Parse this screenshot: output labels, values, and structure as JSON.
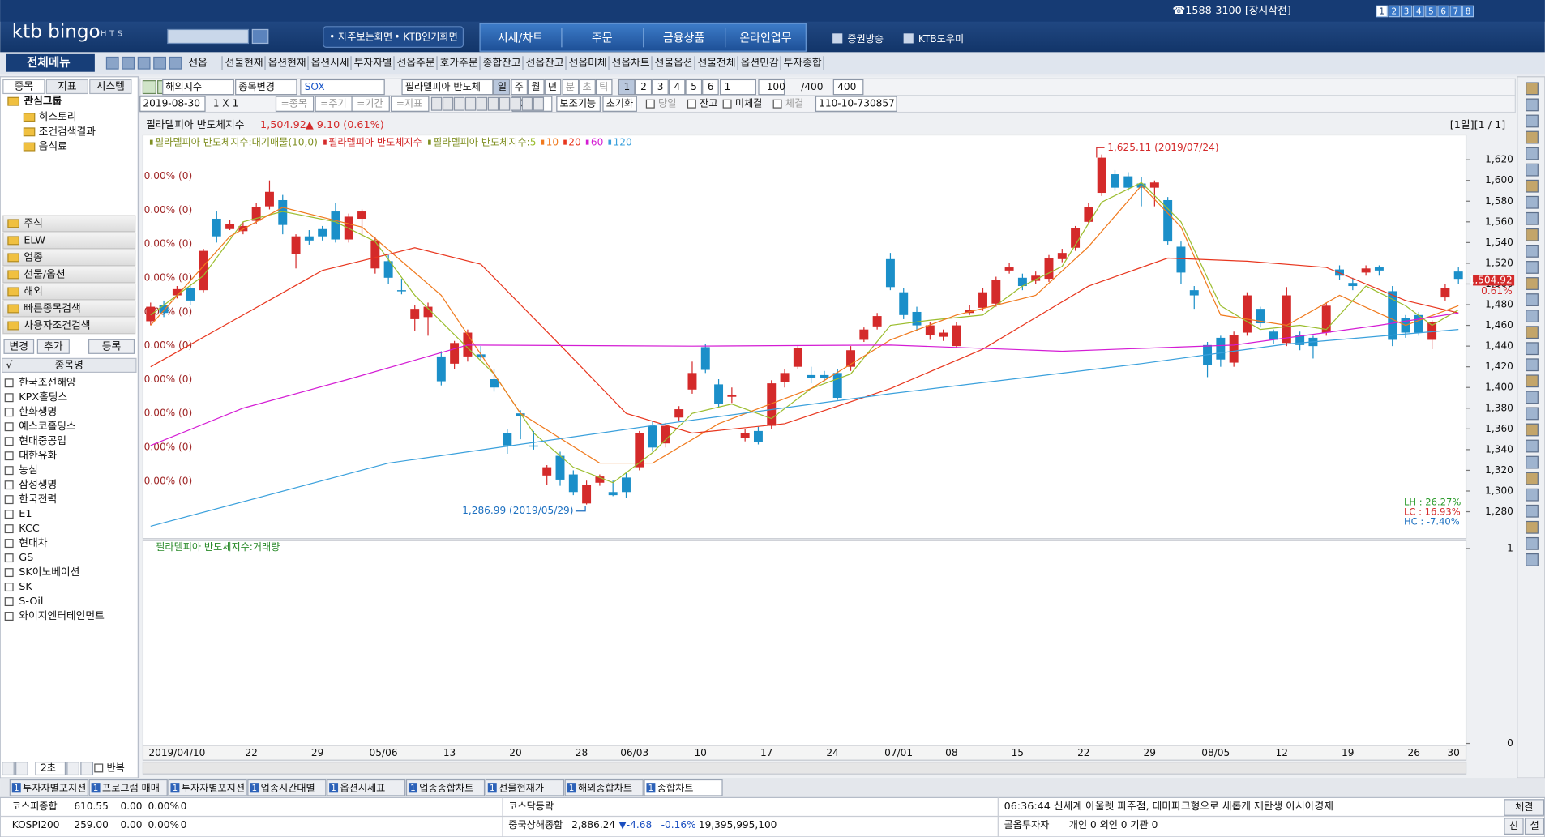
{
  "ui": {
    "phone": "☎1588-3100 [장시작전]",
    "pages": [
      "1",
      "2",
      "3",
      "4",
      "5",
      "6",
      "7",
      "8"
    ],
    "logo": "ktb bingo",
    "logo_sub": "HTS",
    "quick": [
      "• 자주보는화면",
      "• KTB인기화면"
    ],
    "tabs": [
      "시세/차트",
      "주문",
      "금융상품",
      "온라인업무"
    ],
    "links": [
      "증권방송",
      "KTB도우미"
    ],
    "menu_button": "전체메뉴",
    "menu": [
      "선옵",
      "선물현재",
      "옵션현재",
      "옵션시세",
      "투자자별",
      "선옵주문",
      "호가주문",
      "종합잔고",
      "선옵잔고",
      "선옵미체",
      "선옵차트",
      "선물옵션",
      "선물전체",
      "옵션민감",
      "투자종합"
    ],
    "left_tabs": [
      "종목",
      "지표",
      "시스템"
    ],
    "tree_root": "관심그룹",
    "tree_items": [
      "히스토리",
      "조건검색결과",
      "음식료"
    ],
    "groups": [
      "주식",
      "ELW",
      "업종",
      "선물/옵션",
      "해외",
      "빠른종목검색",
      "사용자조건검색"
    ],
    "list_buttons": [
      "변경",
      "추가",
      "등록"
    ],
    "list_header": [
      "√",
      "종목명"
    ],
    "stocks": [
      "한국조선해양",
      "KPX홀딩스",
      "한화생명",
      "예스코홀딩스",
      "현대중공업",
      "대한유화",
      "농심",
      "삼성생명",
      "한국전력",
      "E1",
      "KCC",
      "현대차",
      "GS",
      "SK이노베이션",
      "SK",
      "S-Oil",
      "와이지엔터테인먼트"
    ],
    "left_bottom": [
      "2초",
      "반복"
    ],
    "toolbar1": [
      "해외지수",
      "종목변경",
      "SOX",
      "필라델피아 반도체",
      "일",
      "주",
      "월",
      "년",
      "분",
      "초",
      "틱",
      "1",
      "2",
      "3",
      "4",
      "5",
      "6",
      "1",
      "100",
      "/400",
      "400"
    ],
    "toolbar2": [
      "2019-08-30",
      "1 X 1",
      "=종목",
      "=주기",
      "=기간",
      "=지표",
      "X 1",
      "보조기능",
      "초기화",
      "당일",
      "잔고",
      "미체결",
      "체결",
      "110-10-730857"
    ],
    "tab_index": "1",
    "bottom_tabs": [
      "투자자별포지션",
      "프로그램 매매",
      "투자자별포지션",
      "업종시간대별",
      "옵션시세표",
      "업종종합차트",
      "선물현재가",
      "해외종합차트",
      "종합차트"
    ],
    "status1": [
      "코스피종합",
      "610.55",
      "0.00",
      "0.00%",
      "0"
    ],
    "status2": [
      "KOSPI200",
      "259.00",
      "0.00",
      "0.00%",
      "0"
    ],
    "status3": [
      "코스닥등락"
    ],
    "status4": [
      "중국상해종합",
      "2,886.24",
      "▼-4.68",
      "-0.16%",
      "19,395,995,100"
    ],
    "news": "06:36:44  신세계 아울렛 파주점, 테마파크형으로 새롭게 재탄생  아시아경제",
    "investor": [
      "콜옵투자자",
      "개인 0  외인 0  기관 0"
    ],
    "side_buttons": [
      "체결",
      "신",
      "설"
    ]
  },
  "chart_data": {
    "type": "candlestick",
    "title": "필라델피아 반도체지수",
    "last": "1,504.92",
    "change": "▲ 9.10 (0.61%)",
    "period": "[1일][1 / 1]",
    "legend_texts": [
      {
        "text": "필라델피아 반도체지수:대기매물(10,0)",
        "color": "#7f8f22"
      },
      {
        "text": "필라델피아 반도체지수",
        "color": "#d42a2a"
      },
      {
        "text": "필라델피아 반도체지수:",
        "color": "#7f8f22"
      }
    ],
    "up_color": "#d42a2a",
    "down_color": "#1b8fc9",
    "categories": [
      null,
      null,
      "2019/04/10",
      null,
      null,
      null,
      null,
      null,
      "22",
      null,
      null,
      null,
      null,
      "29",
      null,
      null,
      null,
      null,
      "05/06",
      null,
      null,
      null,
      null,
      "13",
      null,
      null,
      null,
      null,
      "20",
      null,
      null,
      null,
      null,
      "28",
      null,
      null,
      null,
      "06/03",
      null,
      null,
      null,
      null,
      "10",
      null,
      null,
      null,
      null,
      "17",
      null,
      null,
      null,
      null,
      "24",
      null,
      null,
      null,
      null,
      "07/01",
      null,
      null,
      null,
      "08",
      null,
      null,
      null,
      null,
      "15",
      null,
      null,
      null,
      null,
      "22",
      null,
      null,
      null,
      null,
      "29",
      null,
      null,
      null,
      null,
      "08/05",
      null,
      null,
      null,
      null,
      "12",
      null,
      null,
      null,
      null,
      "19",
      null,
      null,
      null,
      null,
      "26",
      null,
      null,
      "30"
    ],
    "open": [
      1464,
      1480,
      1489,
      1496,
      1494,
      1563,
      1553,
      1551,
      1561,
      1575,
      1581,
      1529,
      1546,
      1553,
      1570,
      1543,
      1563,
      1515,
      1522,
      1494,
      1466,
      1468,
      1430,
      1423,
      1430,
      1432,
      1408,
      1356,
      1375,
      1344,
      1315,
      1334,
      1316,
      1288,
      1308,
      1299,
      1313,
      1323,
      1363,
      1346,
      1371,
      1398,
      1439,
      1403,
      1391,
      1351,
      1358,
      1363,
      1405,
      1420,
      1412,
      1412,
      1414,
      1420,
      1446,
      1459,
      1524,
      1492,
      1473,
      1451,
      1449,
      1440,
      1472,
      1477,
      1481,
      1513,
      1506,
      1503,
      1505,
      1524,
      1535,
      1560,
      1588,
      1606,
      1604,
      1597,
      1593,
      1581,
      1536,
      1494,
      1441,
      1448,
      1424,
      1453,
      1476,
      1454,
      1443,
      1451,
      1448,
      1453,
      1514,
      1501,
      1511,
      1516,
      1493,
      1467,
      1470,
      1446,
      1487,
      1512
    ],
    "high": [
      1482,
      1484,
      1498,
      1500,
      1534,
      1570,
      1562,
      1560,
      1578,
      1600,
      1586,
      1548,
      1552,
      1556,
      1578,
      1568,
      1572,
      1545,
      1528,
      1505,
      1480,
      1482,
      1435,
      1445,
      1456,
      1440,
      1418,
      1360,
      1378,
      1358,
      1325,
      1338,
      1320,
      1310,
      1316,
      1310,
      1318,
      1358,
      1368,
      1366,
      1382,
      1425,
      1442,
      1408,
      1400,
      1360,
      1362,
      1407,
      1418,
      1440,
      1420,
      1416,
      1418,
      1440,
      1458,
      1472,
      1530,
      1496,
      1478,
      1463,
      1456,
      1463,
      1480,
      1496,
      1507,
      1520,
      1510,
      1512,
      1528,
      1534,
      1556,
      1578,
      1625.11,
      1610,
      1608,
      1603,
      1600,
      1584,
      1541,
      1498,
      1444,
      1450,
      1454,
      1492,
      1478,
      1456,
      1497,
      1454,
      1450,
      1482,
      1518,
      1506,
      1518,
      1518,
      1498,
      1470,
      1473,
      1465,
      1500,
      1516
    ],
    "low": [
      1460,
      1468,
      1486,
      1480,
      1492,
      1540,
      1552,
      1548,
      1558,
      1572,
      1548,
      1515,
      1538,
      1542,
      1540,
      1540,
      1546,
      1510,
      1500,
      1490,
      1455,
      1450,
      1402,
      1418,
      1425,
      1426,
      1396,
      1336,
      1350,
      1340,
      1306,
      1305,
      1296,
      1286.99,
      1305,
      1295,
      1293,
      1320,
      1338,
      1342,
      1368,
      1394,
      1414,
      1380,
      1385,
      1348,
      1345,
      1360,
      1400,
      1418,
      1404,
      1406,
      1388,
      1416,
      1444,
      1456,
      1494,
      1466,
      1455,
      1446,
      1445,
      1438,
      1470,
      1474,
      1478,
      1510,
      1494,
      1500,
      1502,
      1521,
      1532,
      1558,
      1585,
      1590,
      1590,
      1575,
      1575,
      1538,
      1500,
      1476,
      1410,
      1420,
      1420,
      1450,
      1458,
      1442,
      1440,
      1436,
      1428,
      1450,
      1504,
      1494,
      1508,
      1508,
      1440,
      1448,
      1450,
      1437,
      1484,
      1500
    ],
    "close": [
      1478,
      1472,
      1495,
      1484,
      1532,
      1546,
      1558,
      1556,
      1574,
      1589,
      1557,
      1546,
      1542,
      1546,
      1543,
      1565,
      1570,
      1542,
      1506,
      1493,
      1476,
      1478,
      1406,
      1443,
      1453,
      1429,
      1400,
      1344,
      1372,
      1343,
      1323,
      1311,
      1299,
      1306,
      1314,
      1296,
      1299,
      1356,
      1342,
      1363,
      1379,
      1414,
      1417,
      1384,
      1393,
      1356,
      1347,
      1404,
      1414,
      1438,
      1409,
      1409,
      1390,
      1436,
      1456,
      1469,
      1497,
      1470,
      1460,
      1460,
      1453,
      1460,
      1475,
      1492,
      1504,
      1516,
      1498,
      1508,
      1525,
      1530,
      1554,
      1574,
      1622,
      1593,
      1593,
      1593,
      1598,
      1541,
      1511,
      1489,
      1422,
      1427,
      1451,
      1489,
      1462,
      1446,
      1489,
      1441,
      1440,
      1479,
      1508,
      1498,
      1515,
      1513,
      1446,
      1453,
      1453,
      1463,
      1496,
      1504.92
    ],
    "ylim": [
      1254,
      1644
    ],
    "yticks": [
      {
        "value": 1280,
        "label": "1,280"
      },
      {
        "value": 1300,
        "label": "1,300"
      },
      {
        "value": 1320,
        "label": "1,320"
      },
      {
        "value": 1340,
        "label": "1,340"
      },
      {
        "value": 1360,
        "label": "1,360"
      },
      {
        "value": 1380,
        "label": "1,380"
      },
      {
        "value": 1400,
        "label": "1,400"
      },
      {
        "value": 1420,
        "label": "1,420"
      },
      {
        "value": 1440,
        "label": "1,440"
      },
      {
        "value": 1460,
        "label": "1,460"
      },
      {
        "value": 1480,
        "label": "1,480"
      },
      {
        "value": 1500,
        "label": "1,500"
      },
      {
        "value": 1520,
        "label": "1,520"
      },
      {
        "value": 1540,
        "label": "1,540"
      },
      {
        "value": 1560,
        "label": "1,560"
      },
      {
        "value": 1580,
        "label": "1,580"
      },
      {
        "value": 1600,
        "label": "1,600"
      },
      {
        "value": 1620,
        "label": "1,620"
      }
    ],
    "grid": false,
    "moving_averages": [
      {
        "name": "5",
        "color": "#9bbd2e",
        "x": [
          0,
          4,
          7,
          10,
          14,
          17,
          20,
          23,
          26,
          29,
          32,
          35,
          38,
          41,
          44,
          47,
          50,
          53,
          56,
          59,
          63,
          66,
          69,
          72,
          75,
          78,
          81,
          84,
          87,
          89,
          92,
          95,
          97,
          99
        ],
        "values": [
          1470,
          1508,
          1560,
          1570,
          1560,
          1541,
          1489,
          1451,
          1413,
          1356,
          1323,
          1308,
          1337,
          1375,
          1384,
          1370,
          1399,
          1413,
          1460,
          1465,
          1470,
          1498,
          1517,
          1579,
          1598,
          1560,
          1479,
          1456,
          1460,
          1456,
          1498,
          1479,
          1460,
          1475
        ]
      },
      {
        "name": "10",
        "color": "#f07a1e",
        "x": [
          0,
          6,
          10,
          16,
          22,
          28,
          34,
          38,
          43,
          50,
          56,
          61,
          67,
          71,
          75,
          78,
          81,
          86,
          90,
          95,
          99
        ],
        "values": [
          1460,
          1546,
          1574,
          1555,
          1489,
          1375,
          1327,
          1327,
          1365,
          1399,
          1446,
          1470,
          1489,
          1536,
          1595,
          1555,
          1470,
          1460,
          1489,
          1460,
          1479
        ]
      },
      {
        "name": "20",
        "color": "#e8361e",
        "x": [
          0,
          7,
          13,
          20,
          25,
          31,
          36,
          41,
          48,
          56,
          63,
          71,
          77,
          83,
          89,
          95,
          99
        ],
        "values": [
          1420,
          1470,
          1513,
          1535,
          1519,
          1441,
          1375,
          1356,
          1365,
          1399,
          1437,
          1498,
          1525,
          1522,
          1516,
          1484,
          1472
        ]
      },
      {
        "name": "60",
        "color": "#d41cd4",
        "x": [
          0,
          7,
          15,
          24,
          41,
          56,
          69,
          82,
          93,
          99
        ],
        "values": [
          1344,
          1380,
          1408,
          1441,
          1440,
          1441,
          1435,
          1441,
          1460,
          1472
        ]
      },
      {
        "name": "120",
        "color": "#3aa0dc",
        "x": [
          0,
          18,
          39,
          56,
          75,
          86,
          99
        ],
        "values": [
          1266,
          1327,
          1365,
          1394,
          1423,
          1442,
          1456
        ]
      }
    ],
    "annotations": [
      "1,625.11 (2019/07/24)",
      "1,286.99 (2019/05/29)"
    ],
    "alert_labels": [
      "0.00% (0)",
      "0.00% (0)",
      "0.00% (0)",
      "0.00% (0)",
      "0.00% (0)",
      "0.00% (0)",
      "0.00% (0)",
      "0.00% (0)",
      "0.00% (0)",
      "0.00% (0)"
    ],
    "price_tag": "1,504.92",
    "price_tag_pct": "0.61%",
    "stats": [
      "LH : 26.27%",
      "LC : 16.93%",
      "HC : -7.40%"
    ],
    "volume_title": "필라델피아 반도체지수:거래량",
    "volume_ylim": [
      0,
      1
    ],
    "volume_yticks": [
      0,
      1
    ]
  }
}
